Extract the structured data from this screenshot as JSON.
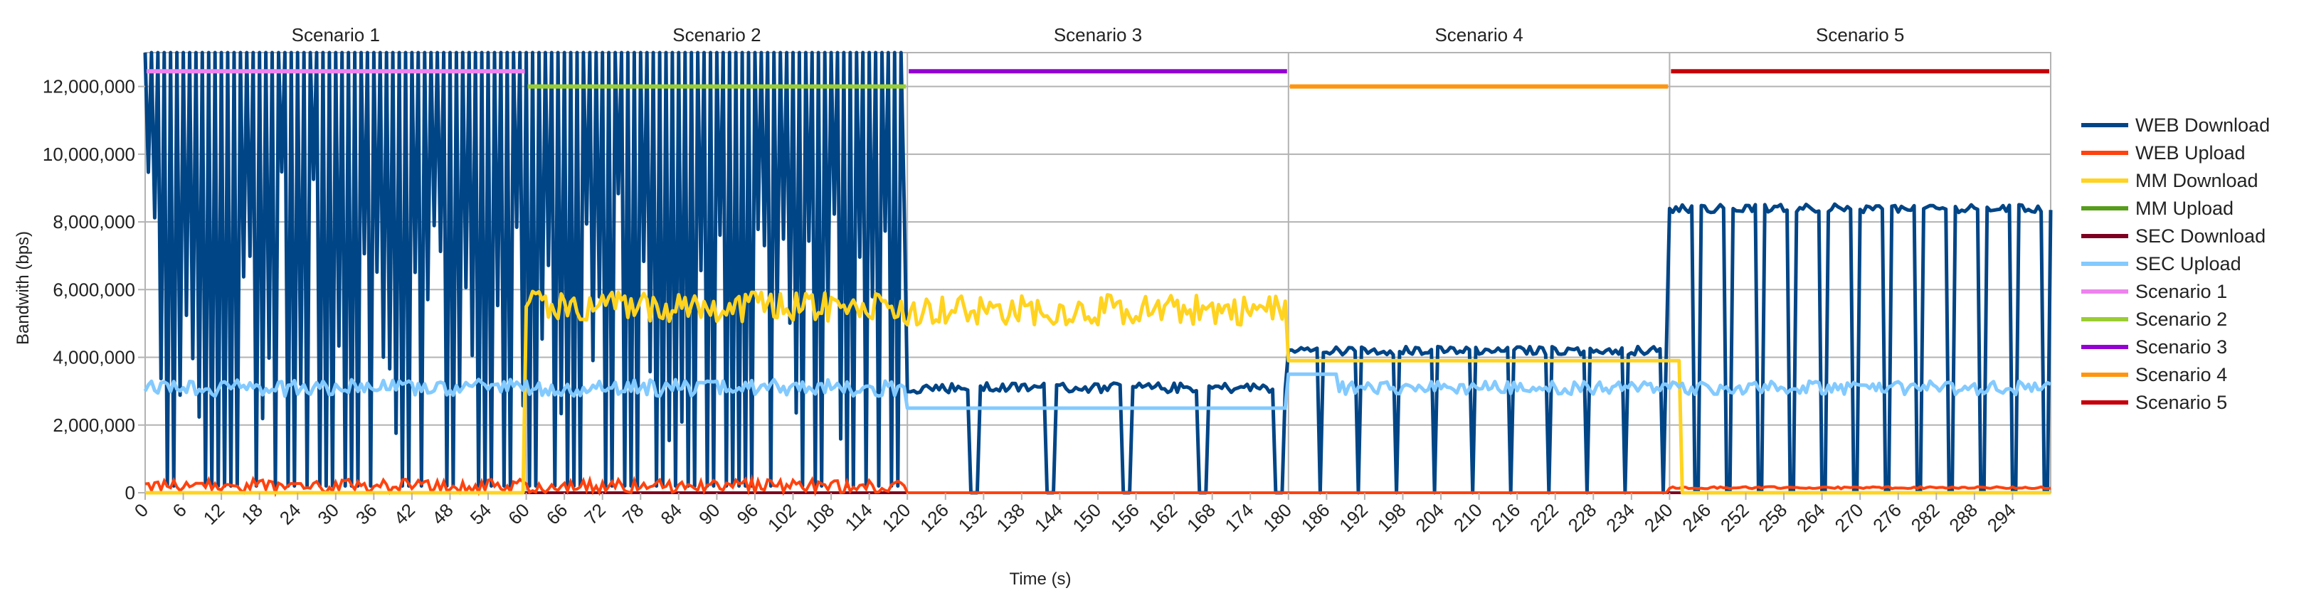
{
  "chart_data": {
    "type": "line",
    "xlabel": "Time (s)",
    "ylabel": "Bandwith (bps)",
    "xlim": [
      0,
      300
    ],
    "ylim": [
      0,
      13000000
    ],
    "grid": true,
    "legend_position": "right",
    "y_ticks": [
      0,
      2000000,
      4000000,
      6000000,
      8000000,
      10000000,
      12000000
    ],
    "y_tick_labels": [
      "0",
      "2,000,000",
      "4,000,000",
      "6,000,000",
      "8,000,000",
      "10,000,000",
      "12,000,000"
    ],
    "x_ticks": [
      0,
      6,
      12,
      18,
      24,
      30,
      36,
      42,
      48,
      54,
      60,
      66,
      72,
      78,
      84,
      90,
      96,
      102,
      108,
      114,
      120,
      126,
      132,
      138,
      144,
      150,
      156,
      162,
      168,
      174,
      180,
      186,
      192,
      198,
      204,
      210,
      216,
      222,
      228,
      234,
      240,
      246,
      252,
      258,
      264,
      270,
      276,
      282,
      288,
      294
    ],
    "scenario_titles": [
      {
        "label": "Scenario 1",
        "start": 0,
        "end": 60
      },
      {
        "label": "Scenario 2",
        "start": 60,
        "end": 120
      },
      {
        "label": "Scenario 3",
        "start": 120,
        "end": 180
      },
      {
        "label": "Scenario 4",
        "start": 180,
        "end": 240
      },
      {
        "label": "Scenario 5",
        "start": 240,
        "end": 300
      }
    ],
    "series": [
      {
        "name": "WEB Download",
        "color": "#004586",
        "description": "0-120s: rapid oscillation between ~0 and >13,000,000 (off-scale); 120-180s: ~3,100,000 with dips to 0; 180-240s: ~4,200,000 with dips to 0; 240-300s: ~8,400,000 with dips to 0"
      },
      {
        "name": "WEB Upload",
        "color": "#ff420e",
        "description": "0-120s: noisy ~0-500,000; 240-300s: ~150,000"
      },
      {
        "name": "MM Download",
        "color": "#ffd320",
        "description": "0-60s: 0; 60-120s: ~5,500,000 noisy; 120-180s: ~5,400,000 noisy; 180-242s: ~3,900,000; 242-300s: 0"
      },
      {
        "name": "MM Upload",
        "color": "#579d1c",
        "description": "~0 throughout"
      },
      {
        "name": "SEC Download",
        "color": "#7e0021",
        "description": "~0 throughout"
      },
      {
        "name": "SEC Upload",
        "color": "#83caff",
        "description": "0-120s: ~3,100,000 noisy; 120-180s: ~2,500,000; 180-188s: ~3,500,000; 188-300s: ~3,100,000 noisy"
      },
      {
        "name": "Scenario 1",
        "color": "#ee82ee",
        "value": 12450000,
        "range": [
          0,
          60
        ]
      },
      {
        "name": "Scenario 2",
        "color": "#9acd32",
        "value": 12000000,
        "range": [
          60,
          120
        ]
      },
      {
        "name": "Scenario 3",
        "color": "#9400d3",
        "value": 12450000,
        "range": [
          120,
          180
        ]
      },
      {
        "name": "Scenario 4",
        "color": "#ff950e",
        "value": 12000000,
        "range": [
          180,
          240
        ]
      },
      {
        "name": "Scenario 5",
        "color": "#c5000b",
        "value": 12450000,
        "range": [
          240,
          300
        ]
      }
    ]
  }
}
